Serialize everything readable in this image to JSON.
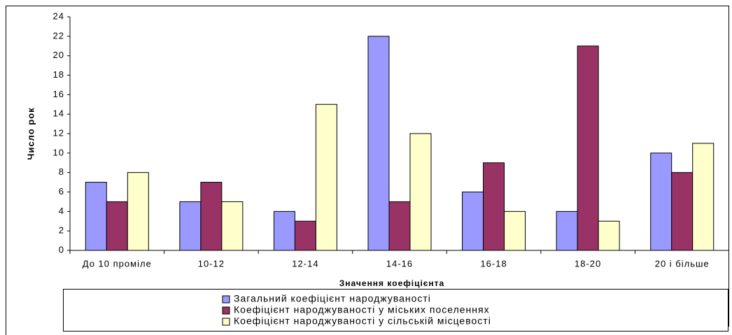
{
  "chart_data": {
    "type": "bar",
    "x_label": "Значення коефіцієнта",
    "y_label": "Число рок",
    "categories": [
      "До 10 проміле",
      "10-12",
      "12-14",
      "14-16",
      "16-18",
      "18-20",
      "20 і більше"
    ],
    "series": [
      {
        "name": "Загальний коефіцієнт народжуваності",
        "color": "#9999ff",
        "values": [
          7,
          5,
          4,
          22,
          6,
          4,
          10
        ]
      },
      {
        "name": "Коефіцієнт народжуваності у міських поселеннях",
        "color": "#993366",
        "values": [
          5,
          7,
          3,
          5,
          9,
          21,
          8
        ]
      },
      {
        "name": "Коефіцієнт народжуваності у сільській місцевості",
        "color": "#ffffcc",
        "values": [
          8,
          5,
          15,
          12,
          4,
          3,
          11
        ]
      }
    ],
    "ylim": [
      0,
      24
    ],
    "yticks": [
      0,
      2,
      4,
      6,
      8,
      10,
      12,
      14,
      16,
      18,
      20,
      22,
      24
    ],
    "grid": false
  }
}
